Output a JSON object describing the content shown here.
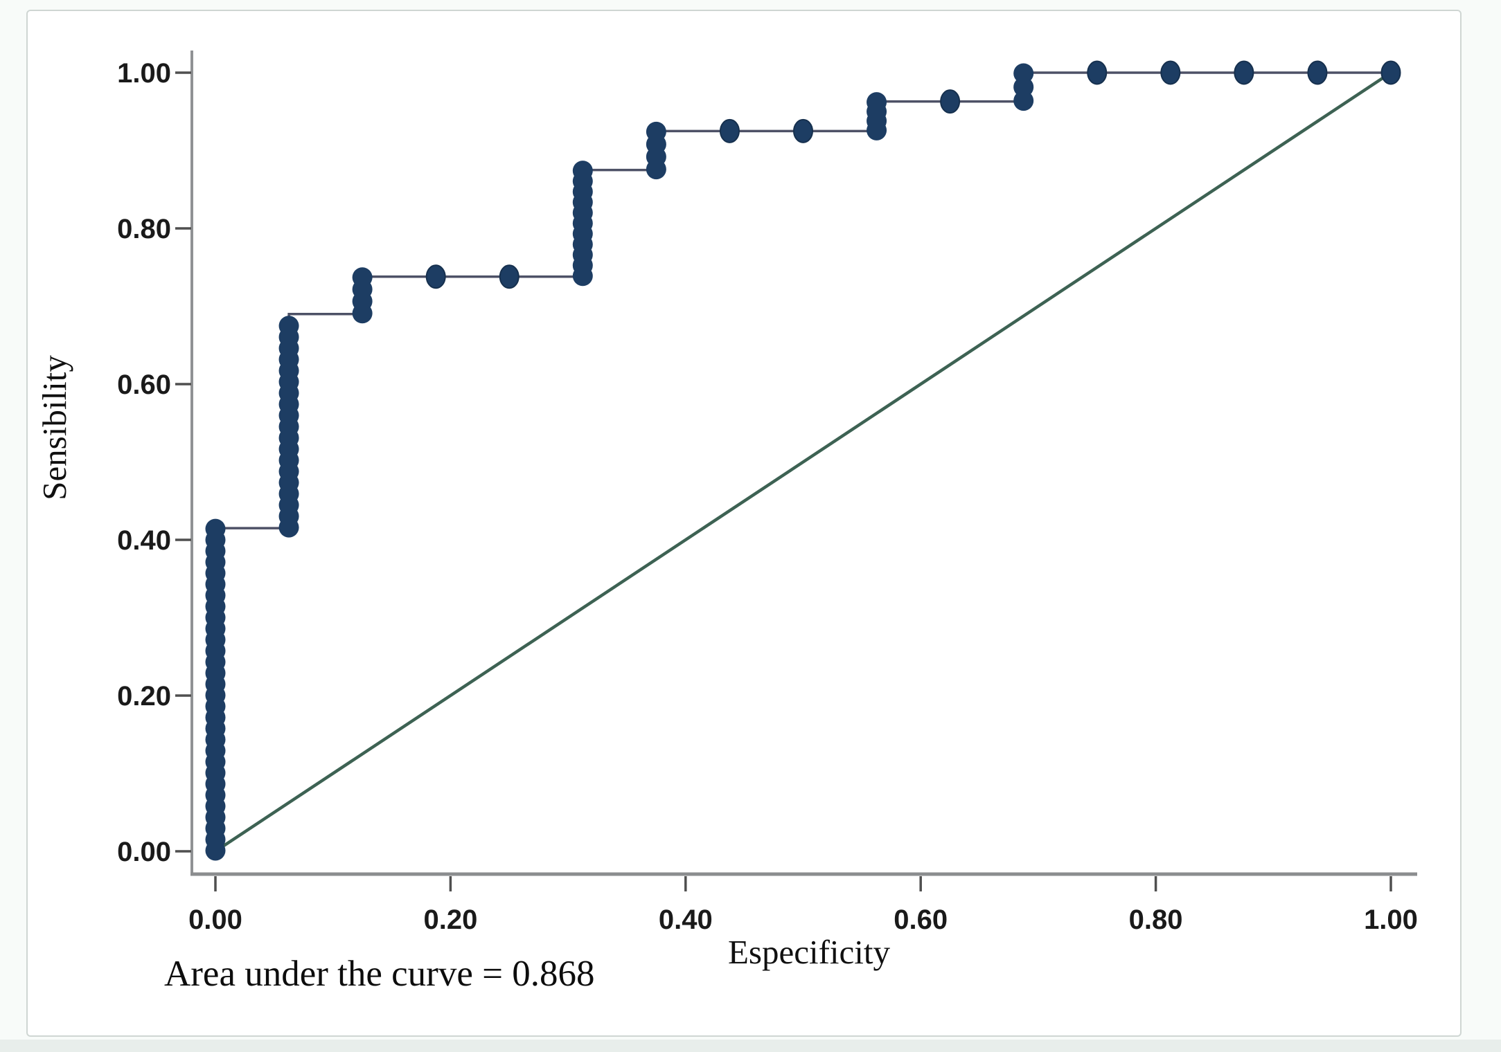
{
  "figure": {
    "y_axis_title": "Sensibility",
    "x_axis_title": "Especificity",
    "caption": "Area under the curve = 0.868"
  },
  "chart_data": {
    "type": "line",
    "subtype": "roc-step-curve",
    "title": "",
    "xlabel": "Especificity",
    "ylabel": "Sensibility",
    "xlim": [
      0,
      1
    ],
    "ylim": [
      0,
      1
    ],
    "grid": false,
    "legend": "none",
    "auc": 0.868,
    "x_ticks": {
      "values": [
        0.0,
        0.2,
        0.4,
        0.6,
        0.8,
        1.0
      ],
      "labels": [
        "0.00",
        "0.20",
        "0.40",
        "0.60",
        "0.80",
        "1.00"
      ]
    },
    "y_ticks": {
      "values": [
        0.0,
        0.2,
        0.4,
        0.6,
        0.8,
        1.0
      ],
      "labels": [
        "0.00",
        "0.20",
        "0.40",
        "0.60",
        "0.80",
        "1.00"
      ]
    },
    "series": [
      {
        "name": "ROC curve",
        "steps": [
          [
            0.0,
            0.0
          ],
          [
            0.0,
            0.415
          ],
          [
            0.0625,
            0.415
          ],
          [
            0.0625,
            0.69
          ],
          [
            0.125,
            0.69
          ],
          [
            0.125,
            0.738
          ],
          [
            0.3125,
            0.738
          ],
          [
            0.3125,
            0.875
          ],
          [
            0.375,
            0.875
          ],
          [
            0.375,
            0.925
          ],
          [
            0.5625,
            0.925
          ],
          [
            0.5625,
            0.963
          ],
          [
            0.6875,
            0.963
          ],
          [
            0.6875,
            1.0
          ],
          [
            1.0,
            1.0
          ]
        ],
        "markers": [
          [
            0.1875,
            0.738
          ],
          [
            0.25,
            0.738
          ],
          [
            0.4375,
            0.925
          ],
          [
            0.5,
            0.925
          ],
          [
            0.625,
            0.963
          ],
          [
            0.75,
            1.0
          ],
          [
            0.8125,
            1.0
          ],
          [
            0.875,
            1.0
          ],
          [
            0.9375,
            1.0
          ],
          [
            1.0,
            1.0
          ]
        ]
      },
      {
        "name": "Reference diagonal",
        "points": [
          [
            0.0,
            0.0
          ],
          [
            1.0,
            1.0
          ]
        ]
      }
    ]
  },
  "colors": {
    "curve": "#1d3d63",
    "curve_edge": "#16304e",
    "connector_line": "#4d5166",
    "reference_line": "#3d6253",
    "axis_line": "#909294",
    "tick_mark": "#4f4f4f",
    "text": "#141414",
    "frame_border": "#cfd6d3",
    "background": "#ffffff"
  }
}
